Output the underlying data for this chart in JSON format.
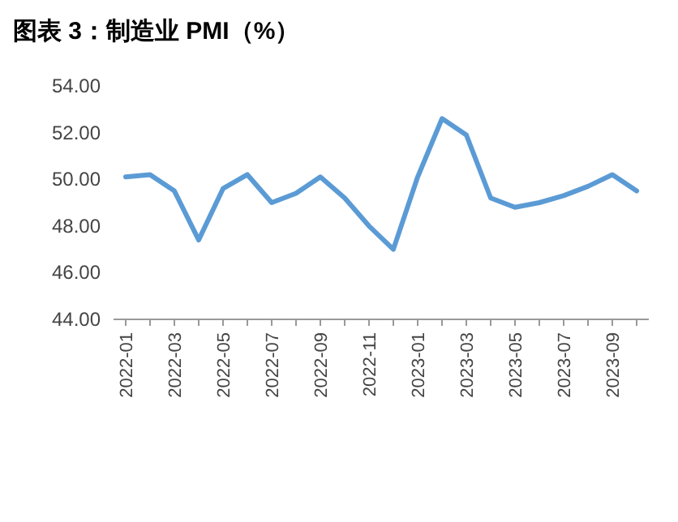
{
  "chart_data": {
    "type": "line",
    "title": "图表 3：制造业 PMI（%）",
    "categories": [
      "2022-01",
      null,
      "2022-03",
      null,
      "2022-05",
      null,
      "2022-07",
      null,
      "2022-09",
      null,
      "2022-11",
      null,
      "2023-01",
      null,
      "2023-03",
      null,
      "2023-05",
      null,
      "2023-07",
      null,
      "2023-09",
      null
    ],
    "series": [
      {
        "color": "#5b9bd5",
        "values": [
          50.1,
          50.2,
          49.5,
          47.4,
          49.6,
          50.2,
          49.0,
          49.4,
          50.1,
          49.2,
          48.0,
          47.0,
          50.1,
          52.6,
          51.9,
          49.2,
          48.8,
          49.0,
          49.3,
          49.7,
          50.2,
          49.5
        ]
      }
    ],
    "ylim": [
      44,
      54
    ],
    "yticks": [
      {
        "value": 44,
        "label": "44.00"
      },
      {
        "value": 46,
        "label": "46.00"
      },
      {
        "value": 48,
        "label": "48.00"
      },
      {
        "value": 50,
        "label": "50.00"
      },
      {
        "value": 52,
        "label": "52.00"
      },
      {
        "value": 54,
        "label": "54.00"
      }
    ],
    "grid": false,
    "marker": "none",
    "line_style": "solid"
  }
}
